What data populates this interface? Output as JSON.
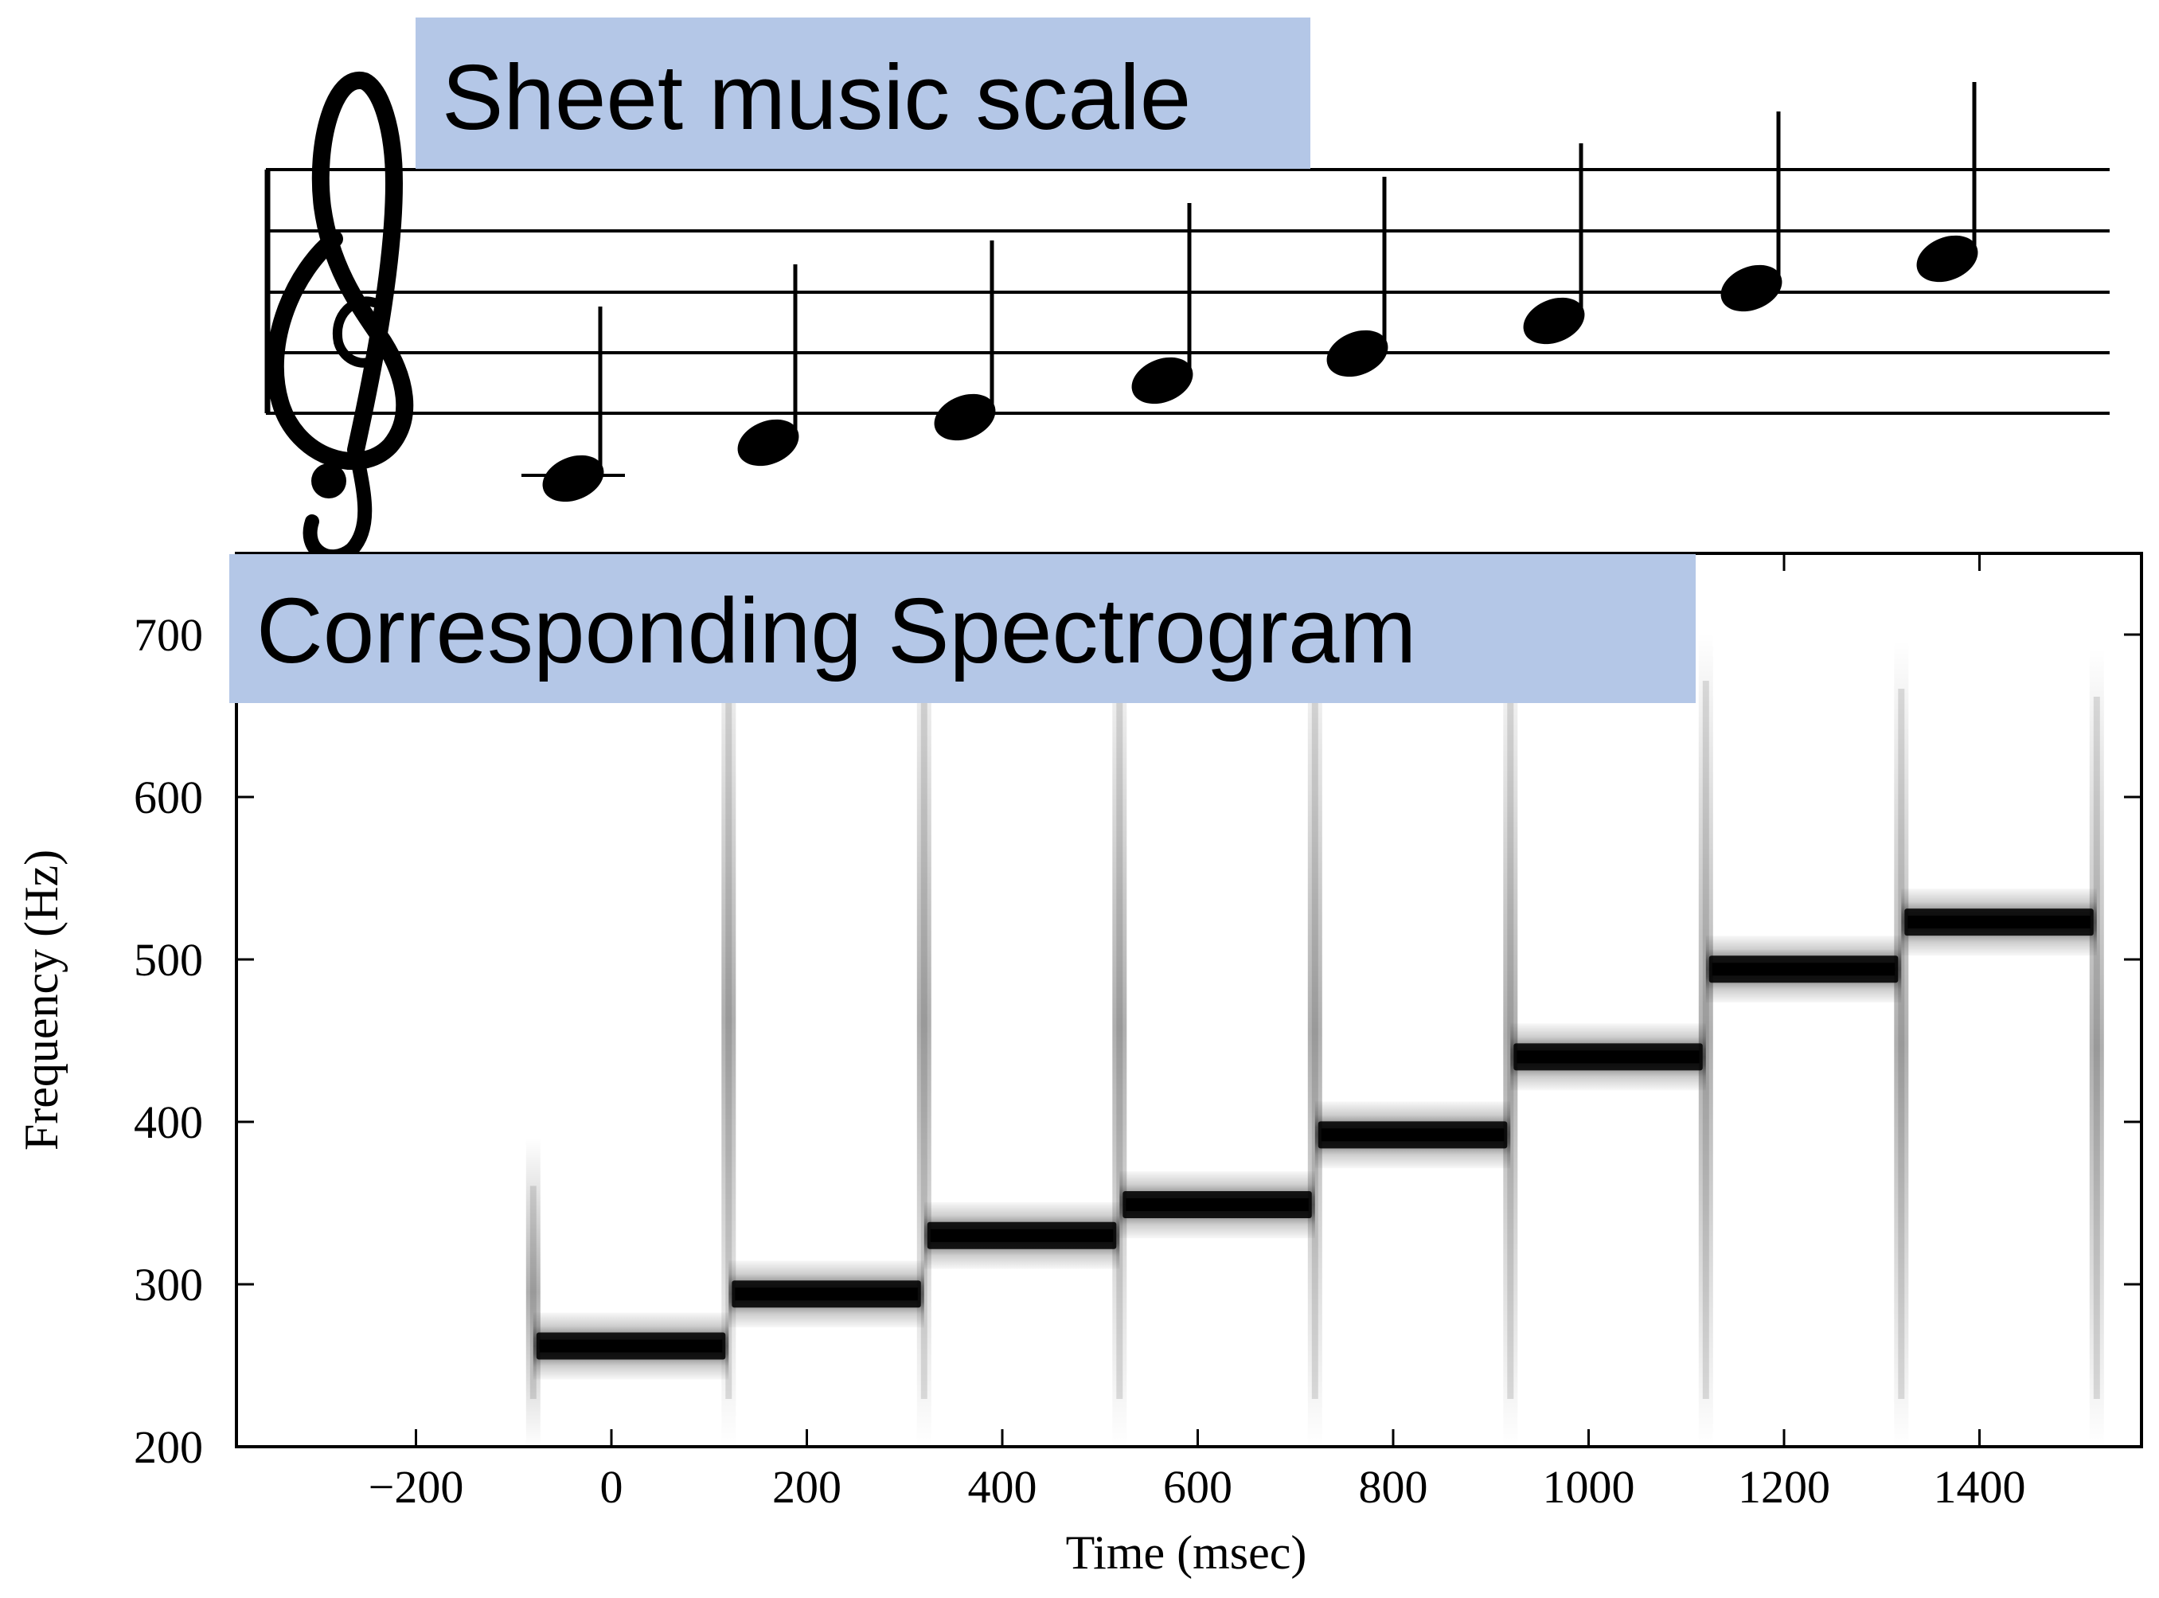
{
  "sheet_music": {
    "title": "Sheet music scale"
  },
  "spectrogram": {
    "title": "Corresponding Spectrogram"
  },
  "colors": {
    "banner": "#b4c7e7",
    "ink": "#000000"
  },
  "chart_data": {
    "type": "heatmap",
    "title": "Corresponding Spectrogram",
    "xlabel": "Time (msec)",
    "ylabel": "Frequency  (Hz)",
    "xlim": [
      -360,
      1570
    ],
    "ylim": [
      200,
      750
    ],
    "xticks": [
      -200,
      0,
      200,
      400,
      600,
      800,
      1000,
      1200,
      1400
    ],
    "xtick_labels": [
      "−200",
      "0",
      "200",
      "400",
      "600",
      "800",
      "1000",
      "1200",
      "1400"
    ],
    "yticks": [
      200,
      300,
      400,
      500,
      600,
      700
    ],
    "ytick_labels": [
      "200",
      "300",
      "400",
      "500",
      "600",
      "700"
    ],
    "notes": [
      {
        "t_start": -80,
        "t_end": 120,
        "freq": 262
      },
      {
        "t_start": 120,
        "t_end": 320,
        "freq": 294
      },
      {
        "t_start": 320,
        "t_end": 520,
        "freq": 330
      },
      {
        "t_start": 520,
        "t_end": 720,
        "freq": 349
      },
      {
        "t_start": 720,
        "t_end": 920,
        "freq": 392
      },
      {
        "t_start": 920,
        "t_end": 1120,
        "freq": 440
      },
      {
        "t_start": 1120,
        "t_end": 1320,
        "freq": 494
      },
      {
        "t_start": 1320,
        "t_end": 1520,
        "freq": 523
      }
    ]
  }
}
